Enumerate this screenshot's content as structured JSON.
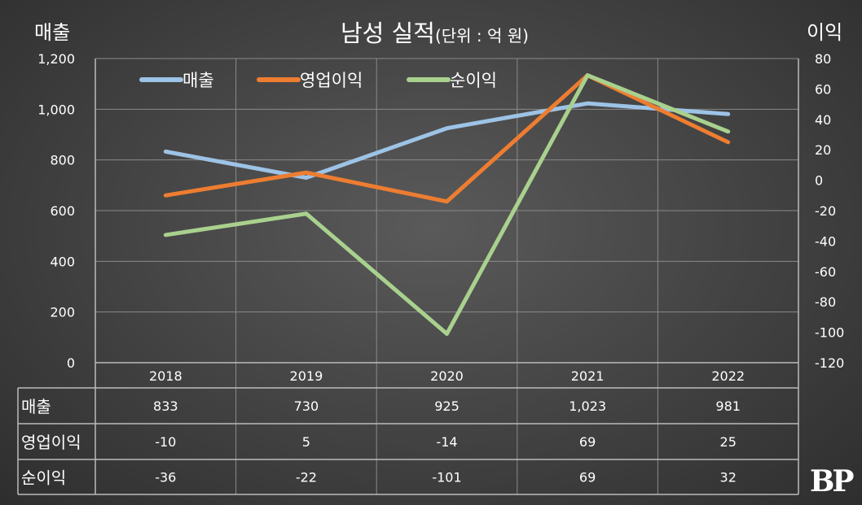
{
  "chart_data": {
    "type": "line",
    "title": "남성 실적",
    "subtitle": "(단위 : 억 원)",
    "ylabel_left": "매출",
    "ylabel_right": "이익",
    "categories": [
      "2018",
      "2019",
      "2020",
      "2021",
      "2022"
    ],
    "y_left": {
      "range": [
        0,
        1200
      ],
      "ticks": [
        "0",
        "200",
        "400",
        "600",
        "800",
        "1,000",
        "1,200"
      ]
    },
    "y_right": {
      "range": [
        -120,
        80
      ],
      "ticks": [
        "-120",
        "-100",
        "-80",
        "-60",
        "-40",
        "-20",
        "0",
        "20",
        "40",
        "60",
        "80"
      ]
    },
    "legend_position": "top-left",
    "grid": true,
    "series": [
      {
        "name": "매출",
        "axis": "left",
        "color": "#9dc3e6",
        "values": [
          833,
          730,
          925,
          1023,
          981
        ],
        "labels": [
          "833",
          "730",
          "925",
          "1,023",
          "981"
        ]
      },
      {
        "name": "영업이익",
        "axis": "right",
        "color": "#ed7d31",
        "values": [
          -10,
          5,
          -14,
          69,
          25
        ],
        "labels": [
          "-10",
          "5",
          "-14",
          "69",
          "25"
        ]
      },
      {
        "name": "순이익",
        "axis": "right",
        "color": "#a9d18e",
        "values": [
          -36,
          -22,
          -101,
          69,
          32
        ],
        "labels": [
          "-36",
          "-22",
          "-101",
          "69",
          "32"
        ]
      }
    ]
  },
  "logo": "BP"
}
